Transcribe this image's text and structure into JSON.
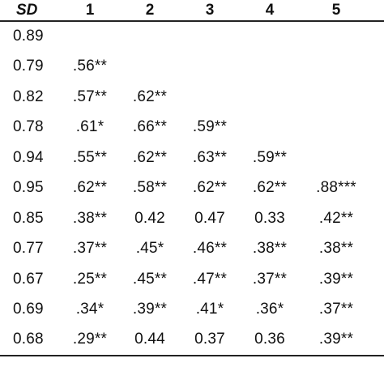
{
  "table": {
    "header": {
      "sd": "SD",
      "columns": [
        "1",
        "2",
        "3",
        "4",
        "5",
        ""
      ]
    },
    "rows": [
      {
        "sd": "0.89",
        "cells": [
          "",
          "",
          "",
          "",
          "",
          ""
        ]
      },
      {
        "sd": "0.79",
        "cells": [
          ".56**",
          "",
          "",
          "",
          "",
          ""
        ]
      },
      {
        "sd": "0.82",
        "cells": [
          ".57**",
          ".62**",
          "",
          "",
          "",
          ""
        ]
      },
      {
        "sd": "0.78",
        "cells": [
          ".61*",
          ".66**",
          ".59**",
          "",
          "",
          ""
        ]
      },
      {
        "sd": "0.94",
        "cells": [
          ".55**",
          ".62**",
          ".63**",
          ".59**",
          "",
          ""
        ]
      },
      {
        "sd": "0.95",
        "cells": [
          ".62**",
          ".58**",
          ".62**",
          ".62**",
          ".88***",
          ""
        ]
      },
      {
        "sd": "0.85",
        "cells": [
          ".38**",
          "0.42",
          "0.47",
          "0.33",
          ".42**",
          "."
        ]
      },
      {
        "sd": "0.77",
        "cells": [
          ".37**",
          ".45*",
          ".46**",
          ".38**",
          ".38**",
          "."
        ]
      },
      {
        "sd": "0.67",
        "cells": [
          ".25**",
          ".45**",
          ".47**",
          ".37**",
          ".39**",
          "."
        ]
      },
      {
        "sd": "0.69",
        "cells": [
          ".34*",
          ".39**",
          ".41*",
          ".36*",
          ".37**",
          "."
        ]
      },
      {
        "sd": "0.68",
        "cells": [
          ".29**",
          "0.44",
          "0.37",
          "0.36",
          ".39**",
          "."
        ]
      }
    ]
  }
}
